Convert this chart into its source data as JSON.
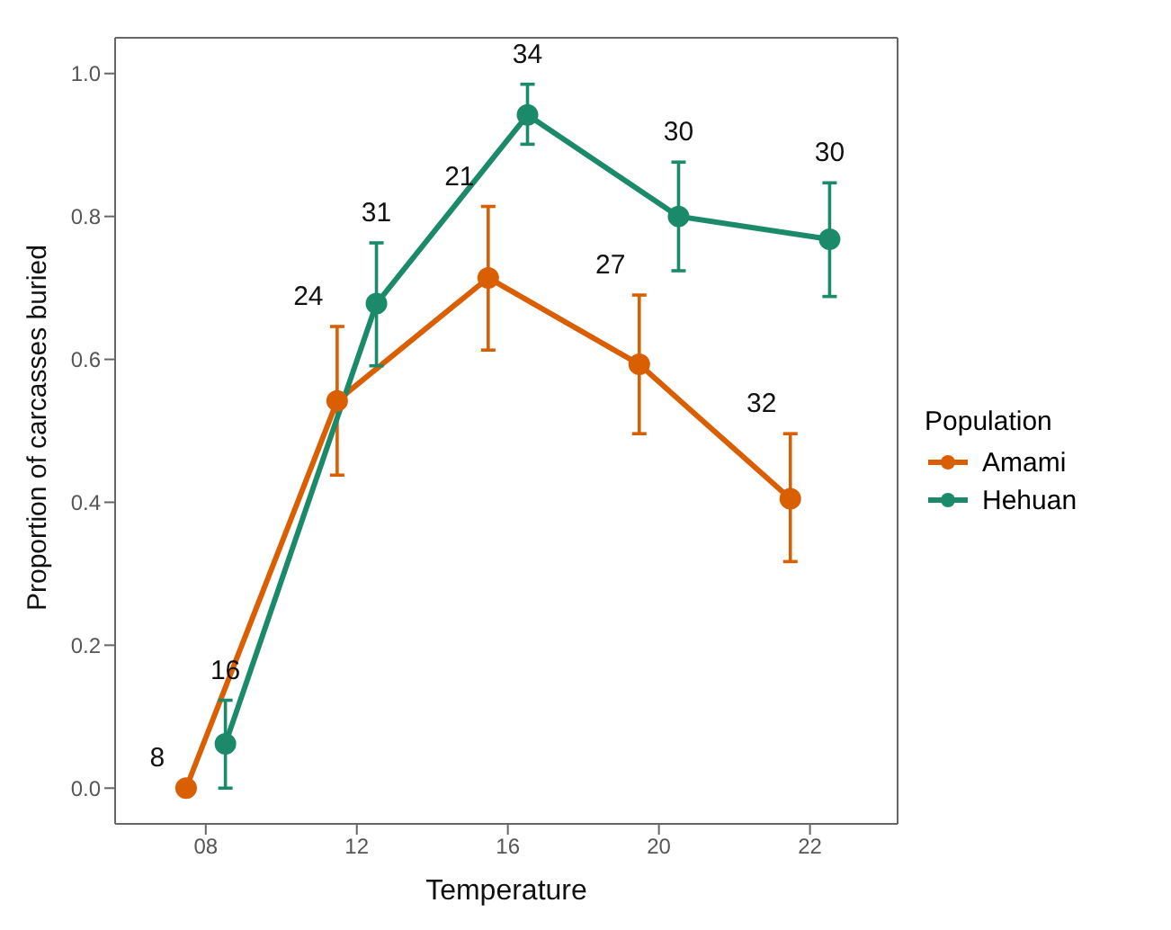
{
  "chart_data": {
    "type": "line",
    "xlabel": "Temperature",
    "ylabel": "Proportion of carcasses buried",
    "legend_title": "Population",
    "categories": [
      "08",
      "12",
      "16",
      "20",
      "22"
    ],
    "series": [
      {
        "name": "Amami",
        "color": "#d95f02",
        "values": [
          0.0,
          0.542,
          0.714,
          0.593,
          0.405
        ],
        "errors": [
          null,
          [
            0.438,
            0.646
          ],
          [
            0.613,
            0.814
          ],
          [
            0.496,
            0.69
          ],
          [
            0.317,
            0.496
          ]
        ]
      },
      {
        "name": "Hehuan",
        "color": "#1b8a6b",
        "values": [
          0.062,
          0.678,
          0.942,
          0.8,
          0.768
        ],
        "errors": [
          [
            0.0,
            0.123
          ],
          [
            0.591,
            0.763
          ],
          [
            0.901,
            0.985
          ],
          [
            0.724,
            0.876
          ],
          [
            0.688,
            0.847
          ]
        ]
      }
    ],
    "annotations": [
      "8",
      "24",
      "21",
      "27",
      "32",
      "16",
      "31",
      "34",
      "30",
      "30"
    ],
    "ylim": [
      -0.05,
      1.05
    ],
    "yticks": [
      {
        "value": 0,
        "label": "0.0"
      },
      {
        "value": 0.2,
        "label": "0.2"
      },
      {
        "value": 0.4,
        "label": "0.4"
      },
      {
        "value": 0.6,
        "label": "0.6"
      },
      {
        "value": 0.8,
        "label": "0.8"
      },
      {
        "value": 1,
        "label": "1.0"
      }
    ],
    "grid": false,
    "legend": "right",
    "marker": "circle",
    "line_style": "solid"
  }
}
